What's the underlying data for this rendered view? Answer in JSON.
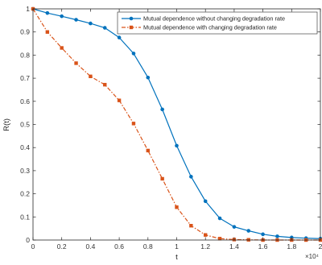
{
  "chart_data": {
    "type": "line",
    "title": "",
    "xlabel": "t",
    "ylabel": "R(t)",
    "x_multiplier_label": "×10⁴",
    "xlim": [
      0,
      2
    ],
    "ylim": [
      0,
      1
    ],
    "xticks": [
      "0",
      "0.2",
      "0.4",
      "0.6",
      "0.8",
      "1",
      "1.2",
      "1.4",
      "1.6",
      "1.8",
      "2"
    ],
    "yticks": [
      "0",
      "0.1",
      "0.2",
      "0.3",
      "0.4",
      "0.5",
      "0.6",
      "0.7",
      "0.8",
      "0.9",
      "1"
    ],
    "grid": false,
    "legend_position": "top-right",
    "x": [
      0,
      0.1,
      0.2,
      0.3,
      0.4,
      0.5,
      0.6,
      0.7,
      0.8,
      0.9,
      1.0,
      1.1,
      1.2,
      1.3,
      1.4,
      1.5,
      1.6,
      1.7,
      1.8,
      1.9,
      2.0
    ],
    "series": [
      {
        "name": "Mutual dependence without changing degradation rate",
        "color": "#0072BD",
        "line_style": "solid",
        "marker": "circle",
        "values": [
          1.0,
          0.982,
          0.968,
          0.953,
          0.937,
          0.918,
          0.876,
          0.807,
          0.703,
          0.565,
          0.408,
          0.274,
          0.168,
          0.094,
          0.057,
          0.04,
          0.025,
          0.016,
          0.011,
          0.008,
          0.006
        ]
      },
      {
        "name": "Mutual dependence with changing degradation rate",
        "color": "#D95319",
        "line_style": "dash-dot",
        "marker": "square",
        "values": [
          1.0,
          0.9,
          0.831,
          0.765,
          0.708,
          0.672,
          0.604,
          0.504,
          0.387,
          0.265,
          0.142,
          0.062,
          0.022,
          0.006,
          0.002,
          0.001,
          0.0,
          0.0,
          0.0,
          0.0,
          0.0
        ]
      }
    ]
  }
}
